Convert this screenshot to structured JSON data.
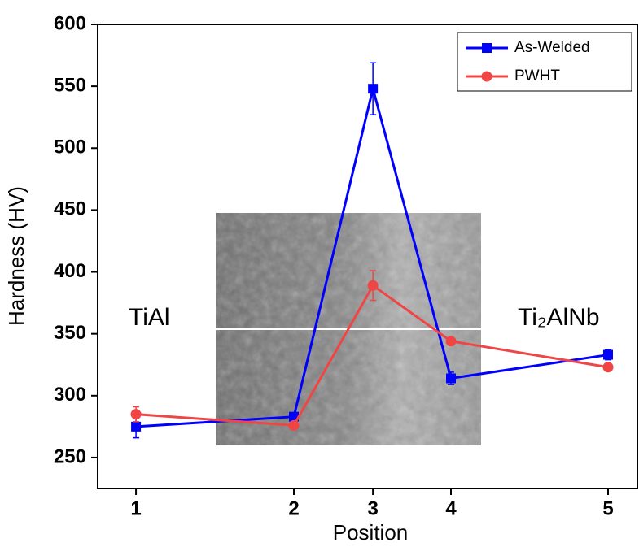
{
  "chart_data": {
    "type": "line",
    "xlabel": "Position",
    "ylabel": "Hardness  (HV)",
    "categories": [
      "1",
      "2",
      "3",
      "4",
      "5"
    ],
    "series": [
      {
        "name": "As-Welded",
        "color": "#0000ff",
        "marker": "square",
        "values": [
          275,
          283,
          548,
          314,
          333
        ],
        "errors": [
          9,
          2,
          21,
          5,
          4
        ]
      },
      {
        "name": "PWHT",
        "color": "#f04545",
        "marker": "circle",
        "values": [
          285,
          276,
          389,
          344,
          323
        ],
        "errors": [
          6,
          2,
          12,
          3,
          2
        ]
      }
    ],
    "ylim": [
      225,
      600
    ],
    "yticks": [
      250,
      300,
      350,
      400,
      450,
      500,
      550,
      600
    ],
    "legend": "upper right",
    "annotations": [
      "TiAl",
      "Ti₂AlNb"
    ]
  }
}
